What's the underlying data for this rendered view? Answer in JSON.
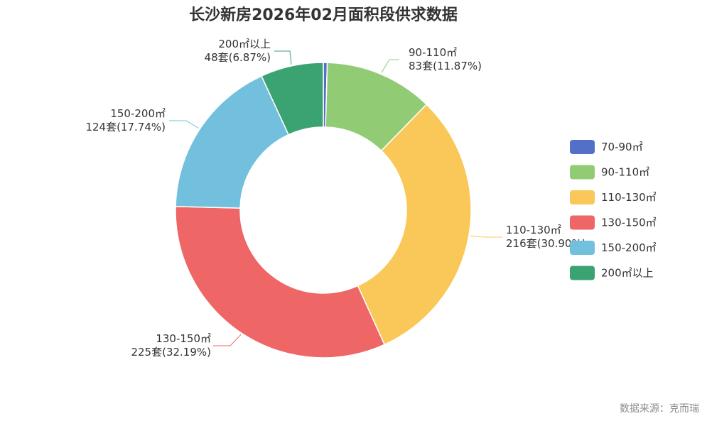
{
  "chart_data": {
    "type": "pie",
    "subtype": "donut",
    "title": "长沙新房2026年02月面积段供求数据",
    "source": "数据来源：克而瑞",
    "legend_position": "right",
    "series": [
      {
        "name": "70-90㎡",
        "value": 3,
        "percent": "0.43%",
        "color": "#5470c6",
        "label": ""
      },
      {
        "name": "90-110㎡",
        "value": 83,
        "percent": "11.87%",
        "color": "#91cc75",
        "label": "83套(11.87%)"
      },
      {
        "name": "110-130㎡",
        "value": 216,
        "percent": "30.90%",
        "color": "#fac858",
        "label": "216套(30.90%)"
      },
      {
        "name": "130-150㎡",
        "value": 225,
        "percent": "32.19%",
        "color": "#ee6666",
        "label": "225套(32.19%)"
      },
      {
        "name": "150-200㎡",
        "value": 124,
        "percent": "17.74%",
        "color": "#73c0de",
        "label": "124套(17.74%)"
      },
      {
        "name": "200㎡以上",
        "value": 48,
        "percent": "6.87%",
        "color": "#3ba272",
        "label": "48套(6.87%)"
      }
    ]
  }
}
